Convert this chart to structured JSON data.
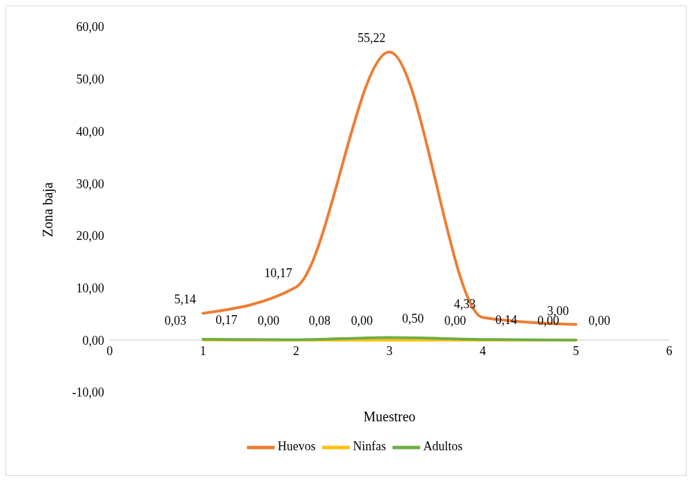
{
  "chart_data": {
    "type": "line",
    "xlabel": "Muestreo",
    "ylabel": "Zona baja",
    "x": [
      1,
      2,
      3,
      4,
      5
    ],
    "series": [
      {
        "name": "Huevos",
        "color": "#ed7d31",
        "values": [
          5.14,
          10.17,
          55.22,
          4.33,
          3.0
        ],
        "value_labels": [
          "5,14",
          "10,17",
          "55,22",
          "4,33",
          "3,00"
        ]
      },
      {
        "name": "Ninfas",
        "color": "#ffc000",
        "values": [
          0.03,
          0.0,
          0.0,
          0.0,
          0.0
        ],
        "value_labels": [
          "0,03",
          "0,00",
          "0,00",
          "0,00",
          "0,00"
        ]
      },
      {
        "name": "Adultos",
        "color": "#70ad47",
        "values": [
          0.17,
          0.08,
          0.5,
          0.14,
          0.0
        ],
        "value_labels": [
          "0,17",
          "0,08",
          "0,50",
          "0,14",
          "0,00"
        ]
      }
    ],
    "xlim": [
      0,
      6
    ],
    "xticks": [
      0,
      1,
      2,
      3,
      4,
      5,
      6
    ],
    "ylim": [
      -10,
      60
    ],
    "yticks": [
      {
        "value": -10,
        "label": "-10,00"
      },
      {
        "value": 0,
        "label": "0,00"
      },
      {
        "value": 10,
        "label": "10,00"
      },
      {
        "value": 20,
        "label": "20,00"
      },
      {
        "value": 30,
        "label": "30,00"
      },
      {
        "value": 40,
        "label": "40,00"
      },
      {
        "value": 50,
        "label": "50,00"
      },
      {
        "value": 60,
        "label": "60,00"
      }
    ],
    "legend": "bottom",
    "grid": false,
    "marker": "none",
    "line_style": "solid"
  }
}
